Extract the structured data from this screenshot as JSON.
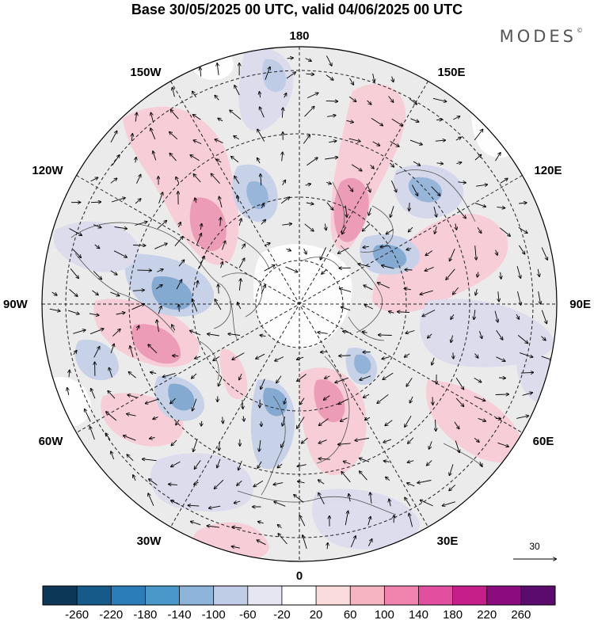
{
  "title": "Base 30/05/2025 00 UTC, valid 04/06/2025 00 UTC",
  "brand": "MODES",
  "brand_mark": "©",
  "longitude_labels": {
    "top": "180",
    "bottom": "0",
    "left": "90W",
    "right": "90E",
    "upper_left_1": "150W",
    "upper_left_2": "120W",
    "upper_right_1": "150E",
    "upper_right_2": "120E",
    "lower_left_1": "60W",
    "lower_left_2": "30W",
    "lower_right_1": "60E",
    "lower_right_2": "30E"
  },
  "reference_vector": {
    "value": "30"
  },
  "colorbar": {
    "ticks": [
      "-260",
      "-220",
      "-180",
      "-140",
      "-100",
      "-60",
      "-20",
      "20",
      "60",
      "100",
      "140",
      "180",
      "220",
      "260"
    ],
    "colors": [
      "#0c3757",
      "#165a8a",
      "#2a7db8",
      "#4a97c9",
      "#8db4d9",
      "#bfcde6",
      "#e6e6f2",
      "#ffffff",
      "#fbdcdc",
      "#f6b4c0",
      "#f084ae",
      "#e34f9f",
      "#c71f8a",
      "#8c0c80",
      "#5b0b6e"
    ]
  }
}
